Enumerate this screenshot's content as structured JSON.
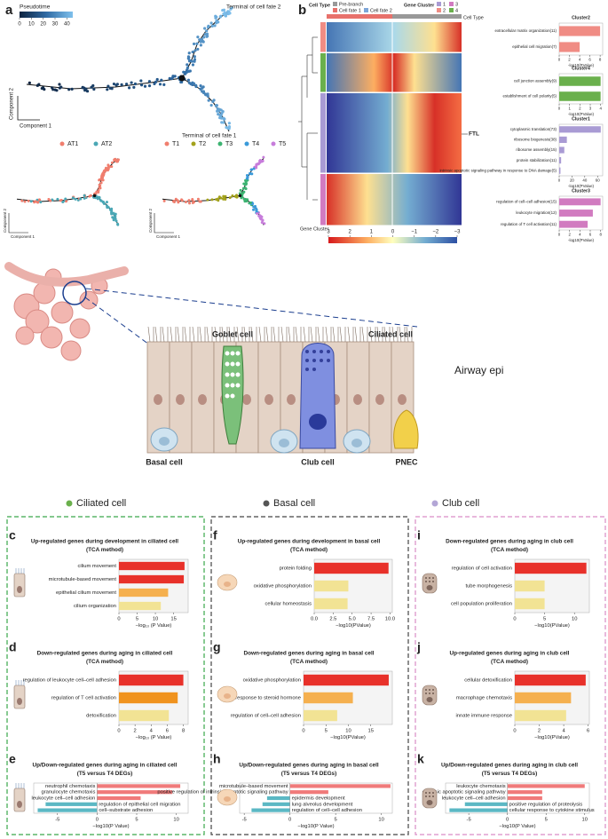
{
  "figure": {
    "panel_a": {
      "letter": "a",
      "colorbar_title": "Pseudotime",
      "colorbar_lim": [
        0,
        45
      ],
      "colorbar_ticks": [
        0,
        10,
        20,
        30,
        40
      ],
      "fate2": "Terminal of cell fate 2",
      "fate1": "Terminal of cell fate 1",
      "xlabel": "Component 1",
      "ylabel": "Component 2",
      "legend1": [
        {
          "name": "AT1",
          "color": "#f07e6e"
        },
        {
          "name": "AT2",
          "color": "#4aa7b5"
        }
      ],
      "legend2": [
        {
          "name": "T1",
          "color": "#f07e6e"
        },
        {
          "name": "T2",
          "color": "#a3a21c"
        },
        {
          "name": "T3",
          "color": "#3cb371"
        },
        {
          "name": "T4",
          "color": "#3a9ad9"
        },
        {
          "name": "T5",
          "color": "#c77ddb"
        }
      ]
    },
    "panel_b": {
      "letter": "b",
      "cell_type": "Cell Type",
      "pre_branch": "Pre-branch",
      "fate1": "Cell fate 1",
      "fate2": "Cell fate 2",
      "gene_cluster": "Gene Cluster",
      "clusters": [
        {
          "name": "1",
          "color": "#a99bd4"
        },
        {
          "name": "2",
          "color": "#f08c84"
        },
        {
          "name": "3",
          "color": "#d17bc0"
        },
        {
          "name": "4",
          "color": "#6ab04c"
        }
      ],
      "gene": "FTL",
      "colorbar_lim": [
        3,
        -3
      ],
      "colorbar_ticks": [
        3,
        2,
        1,
        0,
        {
          "value": -1,
          "label": "−1"
        },
        {
          "value": -2,
          "label": "−2"
        },
        {
          "value": -3,
          "label": "−3"
        }
      ]
    },
    "illustration": {
      "goblet": "Goblet cell",
      "ciliated": "Ciliated cell",
      "tissue": "Airway epi",
      "basal": "Basal cell",
      "club": "Club cell",
      "pnec": "PNEC"
    },
    "sections": [
      {
        "name": "Ciliated cell",
        "color": "#6ab04c"
      },
      {
        "name": "Basal cell",
        "color": "#555555"
      },
      {
        "name": "Club cell",
        "color": "#b3a6d6"
      }
    ]
  },
  "chart_data": [
    {
      "type": "bar",
      "label": "c",
      "title": "Up-regulated genes during development in ciliated cell",
      "subtitle": "(TCA method)",
      "title_color": "#2a6db5",
      "categories": [
        "cilium movement",
        "microtubule-based movement",
        "epithelial cilium movement",
        "cilium organization"
      ],
      "values": [
        18,
        17.8,
        13.5,
        11.5
      ],
      "colors": [
        "#e8312a",
        "#e8312a",
        "#f5b04f",
        "#f2e394"
      ],
      "xlim": [
        0,
        19
      ],
      "xticks": [
        0,
        5,
        10,
        15
      ],
      "xlabel": "−log₁₀ (P Value)"
    },
    {
      "type": "bar",
      "label": "d",
      "title": "Down-regulated genes during aging in ciliated cell",
      "subtitle": "(TCA method)",
      "title_color": "#9a6b4b",
      "categories": [
        "regulation of leukocyte cell–cell adhesion",
        "regulation of T cell activation",
        "detoxification"
      ],
      "values": [
        8,
        7.3,
        6.2
      ],
      "colors": [
        "#e8312a",
        "#f0931e",
        "#f2e394"
      ],
      "xlim": [
        0,
        8.6
      ],
      "xticks": [
        0,
        2,
        4,
        6,
        8
      ],
      "xlabel": "−log₁₀ (P Value)"
    },
    {
      "type": "bar",
      "label": "e",
      "title": "Up/Down-regulated genes during aging in ciliated cell",
      "subtitle": "(T5 versus T4 DEGs)",
      "title_color": "#9a6b4b",
      "categories": [
        "neutrophil chemotaxis",
        "granulocyte chemotaxis",
        "leukocyte cell–cell adhesion",
        "regulation of epithelial cell migration",
        "cell–substrate adhesion"
      ],
      "values": [
        10.5,
        9.5,
        5.5,
        -6.5,
        -7.5
      ],
      "colors": [
        "#f07a7a",
        "#f07a7a",
        "#f07a7a",
        "#5bb8c4",
        "#5bb8c4"
      ],
      "xlim": [
        -8,
        11.5
      ],
      "xticks": [
        -5,
        0,
        5,
        10
      ],
      "xlabel": "−log10(P Value)"
    },
    {
      "type": "bar",
      "label": "f",
      "title": "Up-regulated genes during development in basal cell",
      "subtitle": "(TCA method)",
      "title_color": "#2a6db5",
      "categories": [
        "protein folding",
        "oxidative phosphorylation",
        "cellular homeostasis"
      ],
      "values": [
        9.8,
        4.5,
        4.4
      ],
      "colors": [
        "#e8312a",
        "#f2e394",
        "#f2e394"
      ],
      "xlim": [
        0,
        10.3
      ],
      "xticks": [
        {
          "value": 0,
          "label": "0.0"
        },
        {
          "value": 2.5,
          "label": "2.5"
        },
        {
          "value": 5,
          "label": "5.0"
        },
        {
          "value": 7.5,
          "label": "7.5"
        },
        {
          "value": 10,
          "label": "10.0"
        }
      ],
      "xlabel": "−log10(PValue)"
    },
    {
      "type": "bar",
      "label": "g",
      "title": "Down-regulated genes during aging in basal cell",
      "subtitle": "(TCA method)",
      "title_color": "#9a6b4b",
      "categories": [
        "oxidative phosphorylation",
        "response to steroid hormone",
        "regulation of cell–cell adhesion"
      ],
      "values": [
        19,
        11,
        7.5
      ],
      "colors": [
        "#e8312a",
        "#f5b04f",
        "#f2e394"
      ],
      "xlim": [
        0,
        19.8
      ],
      "xticks": [
        0,
        5,
        10,
        15
      ],
      "xlabel": "−log10(PValue)"
    },
    {
      "type": "bar",
      "label": "h",
      "title": "Up/Down-regulated genes during aging in basal cell",
      "subtitle": "(T5 versus T4 DEGs)",
      "title_color": "#9a6b4b",
      "categories": [
        "microtubule–based movement",
        "positive regulation of intrinsic apoptotic signaling pathway",
        "epidermis development",
        "lung alveolus development",
        "regulation of cell–cell adhesion"
      ],
      "values": [
        11,
        4.2,
        -2.5,
        -3,
        -4.2
      ],
      "colors": [
        "#f07a7a",
        "#f07a7a",
        "#5bb8c4",
        "#5bb8c4",
        "#5bb8c4"
      ],
      "xlim": [
        -5.5,
        11.2
      ],
      "xticks": [
        -5,
        0,
        5,
        10
      ],
      "xlabel": "−log10(P Value)"
    },
    {
      "type": "bar",
      "label": "i",
      "title": "Down-regulated genes during aging in club cell",
      "subtitle": "(TCA method)",
      "title_color": "#9a6b4b",
      "categories": [
        "regulation of cell activation",
        "tube morphogenesis",
        "cell population proliferation"
      ],
      "values": [
        12,
        5,
        5
      ],
      "colors": [
        "#e8312a",
        "#f2e394",
        "#f2e394"
      ],
      "xlim": [
        0,
        12.5
      ],
      "xticks": [
        0,
        5,
        10
      ],
      "xlabel": "−log10(PValue)"
    },
    {
      "type": "bar",
      "label": "j",
      "title": "Up-regulated genes during aging in club cell",
      "subtitle": "(TCA method)",
      "title_color": "#9a6b4b",
      "categories": [
        "cellular detoxification",
        "macrophage chemotaxis",
        "innate immune response"
      ],
      "values": [
        5.8,
        4.6,
        4.2
      ],
      "colors": [
        "#e8312a",
        "#f5b04f",
        "#f2e394"
      ],
      "xlim": [
        0,
        6.1
      ],
      "xticks": [
        0,
        2,
        4,
        6
      ],
      "xlabel": "−log10(PValue)"
    },
    {
      "type": "bar",
      "label": "k",
      "title": "Up/Down-regulated genes during aging in club cell",
      "subtitle": "(T5 versus T4 DEGs)",
      "title_color": "#9a6b4b",
      "categories": [
        "leukocyte chemotaxis",
        "extrinsic apoptotic signaling pathway",
        "leukocyte cell–cell adhesion",
        "positive regulation of proteolysis",
        "cellular response to cytokine stimulus"
      ],
      "values": [
        10,
        4.5,
        4.5,
        -5.5,
        -7.5
      ],
      "colors": [
        "#f07a7a",
        "#f07a7a",
        "#f07a7a",
        "#5bb8c4",
        "#5bb8c4"
      ],
      "xlim": [
        -8,
        10.6
      ],
      "xticks": [
        -5,
        0,
        5,
        10
      ],
      "xlabel": "−log10(P Value)"
    },
    {
      "type": "bar",
      "title": "Cluster2",
      "title_color": "#222",
      "categories": [
        "extracellular matrix organization(11)",
        "epithelial cell migration(7)"
      ],
      "values": [
        8,
        4
      ],
      "colors": [
        "#f08c84",
        "#f08c84"
      ],
      "xlim": [
        0,
        8.5
      ],
      "xticks": [
        0,
        2,
        4,
        6,
        8
      ],
      "xlabel": "-log10(PValue)"
    },
    {
      "type": "bar",
      "title": "Cluster4",
      "title_color": "#222",
      "categories": [
        "cell junction assembly(9)",
        "establishment of cell polarity(5)"
      ],
      "values": [
        4,
        4
      ],
      "colors": [
        "#6ab04c",
        "#6ab04c"
      ],
      "xlim": [
        0,
        4.2
      ],
      "xticks": [
        0,
        1,
        2,
        3,
        4
      ],
      "xlabel": "-log10(PValue)"
    },
    {
      "type": "bar",
      "title": "Cluster1",
      "title_color": "#222",
      "categories": [
        "cytoplasmic translation(73)",
        "ribosome biogenesis(38)",
        "ribosome assembly(15)",
        "protein stabilization(11)",
        "intrinsic apoptotic signaling pathway in response to DNA damage(5)"
      ],
      "values": [
        65,
        12,
        8,
        3,
        2
      ],
      "colors": [
        "#a99bd4",
        "#a99bd4",
        "#a99bd4",
        "#a99bd4",
        "#a99bd4"
      ],
      "xlim": [
        0,
        68
      ],
      "xticks": [
        0,
        20,
        40,
        60
      ],
      "xlabel": "-log10(PValue)"
    },
    {
      "type": "bar",
      "title": "Cluster3",
      "title_color": "#222",
      "categories": [
        "regulation of cell–cell adhesion(15)",
        "leukocyte migration(12)",
        "regulation of T cell activation(11)"
      ],
      "values": [
        8,
        6.5,
        5.5
      ],
      "colors": [
        "#d17bc0",
        "#d17bc0",
        "#d17bc0"
      ],
      "xlim": [
        0,
        8.4
      ],
      "xticks": [
        0,
        2,
        4,
        6,
        8
      ],
      "xlabel": "-log10(PValue)"
    }
  ]
}
